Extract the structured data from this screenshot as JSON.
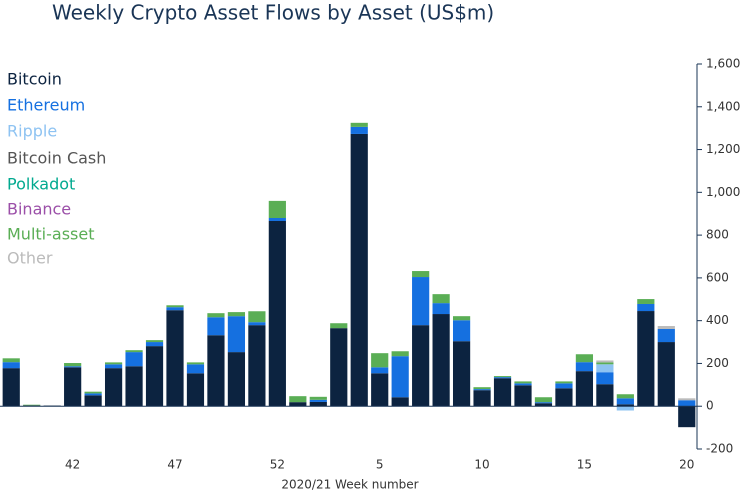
{
  "chart_data": {
    "type": "stacked-bar",
    "title": "Weekly Crypto Asset Flows by Asset (US$m)",
    "x_label": "2020/21 Week number",
    "categories": [
      null,
      null,
      null,
      "42",
      null,
      null,
      null,
      null,
      "47",
      null,
      null,
      null,
      null,
      "52",
      null,
      null,
      null,
      null,
      "5",
      null,
      null,
      null,
      null,
      "10",
      null,
      null,
      null,
      null,
      "15",
      null,
      null,
      null,
      null,
      "20"
    ],
    "series": [
      {
        "name": "Bitcoin",
        "color": "#0c2340",
        "values": [
          178,
          4,
          3,
          182,
          51,
          178,
          187,
          281,
          449,
          154,
          332,
          253,
          379,
          866,
          19,
          20,
          365,
          1273,
          154,
          42,
          379,
          431,
          304,
          75,
          131,
          98,
          14,
          84,
          164,
          103,
          9,
          445,
          300,
          -98
        ]
      },
      {
        "name": "Ethereum",
        "color": "#1570e0",
        "values": [
          28,
          0,
          0,
          5,
          9,
          18,
          66,
          19,
          14,
          42,
          84,
          168,
          14,
          14,
          0,
          10,
          0,
          33,
          28,
          192,
          225,
          51,
          98,
          5,
          5,
          9,
          5,
          23,
          42,
          56,
          28,
          33,
          61,
          28
        ]
      },
      {
        "name": "Ripple",
        "color": "#8ec3f2",
        "values": [
          0,
          0,
          0,
          0,
          0,
          0,
          0,
          0,
          0,
          0,
          0,
          0,
          0,
          0,
          0,
          0,
          0,
          0,
          0,
          0,
          0,
          0,
          0,
          0,
          0,
          0,
          0,
          0,
          0,
          37,
          -20,
          0,
          0,
          0
        ]
      },
      {
        "name": "Bitcoin Cash",
        "color": "#555555",
        "values": [
          0,
          0,
          0,
          0,
          0,
          0,
          0,
          0,
          0,
          0,
          0,
          0,
          0,
          0,
          0,
          0,
          0,
          0,
          0,
          0,
          0,
          0,
          0,
          0,
          0,
          0,
          0,
          0,
          0,
          0,
          0,
          0,
          0,
          0
        ]
      },
      {
        "name": "Polkadot",
        "color": "#00a98f",
        "values": [
          0,
          0,
          0,
          0,
          0,
          0,
          0,
          0,
          0,
          0,
          0,
          0,
          0,
          0,
          0,
          0,
          0,
          0,
          0,
          0,
          0,
          0,
          0,
          0,
          0,
          0,
          0,
          0,
          0,
          0,
          0,
          0,
          0,
          0
        ]
      },
      {
        "name": "Binance",
        "color": "#9b4fa8",
        "values": [
          0,
          0,
          0,
          0,
          0,
          0,
          0,
          0,
          0,
          0,
          0,
          0,
          0,
          0,
          0,
          0,
          0,
          0,
          0,
          0,
          0,
          0,
          0,
          0,
          0,
          0,
          0,
          0,
          0,
          0,
          0,
          0,
          0,
          0
        ]
      },
      {
        "name": "Multi-asset",
        "color": "#5aae55",
        "values": [
          18,
          3,
          0,
          15,
          8,
          9,
          9,
          9,
          9,
          9,
          19,
          19,
          51,
          80,
          28,
          14,
          23,
          19,
          66,
          23,
          28,
          42,
          19,
          9,
          5,
          9,
          23,
          9,
          37,
          9,
          19,
          23,
          0,
          0
        ]
      },
      {
        "name": "Other",
        "color": "#bbbbbb",
        "values": [
          0,
          0,
          0,
          0,
          0,
          0,
          0,
          0,
          0,
          0,
          0,
          0,
          0,
          0,
          0,
          0,
          0,
          0,
          0,
          0,
          0,
          0,
          0,
          0,
          0,
          0,
          0,
          0,
          0,
          9,
          0,
          0,
          14,
          9
        ]
      }
    ],
    "ylim": [
      -200,
      1600
    ],
    "yticks": [
      {
        "value": 1600,
        "label": "1,600"
      },
      {
        "value": 1400,
        "label": "1,400"
      },
      {
        "value": 1200,
        "label": "1,200"
      },
      {
        "value": 1000,
        "label": "1,000"
      },
      800,
      600,
      400,
      200,
      0,
      -200
    ],
    "y_axis_side": "right"
  }
}
